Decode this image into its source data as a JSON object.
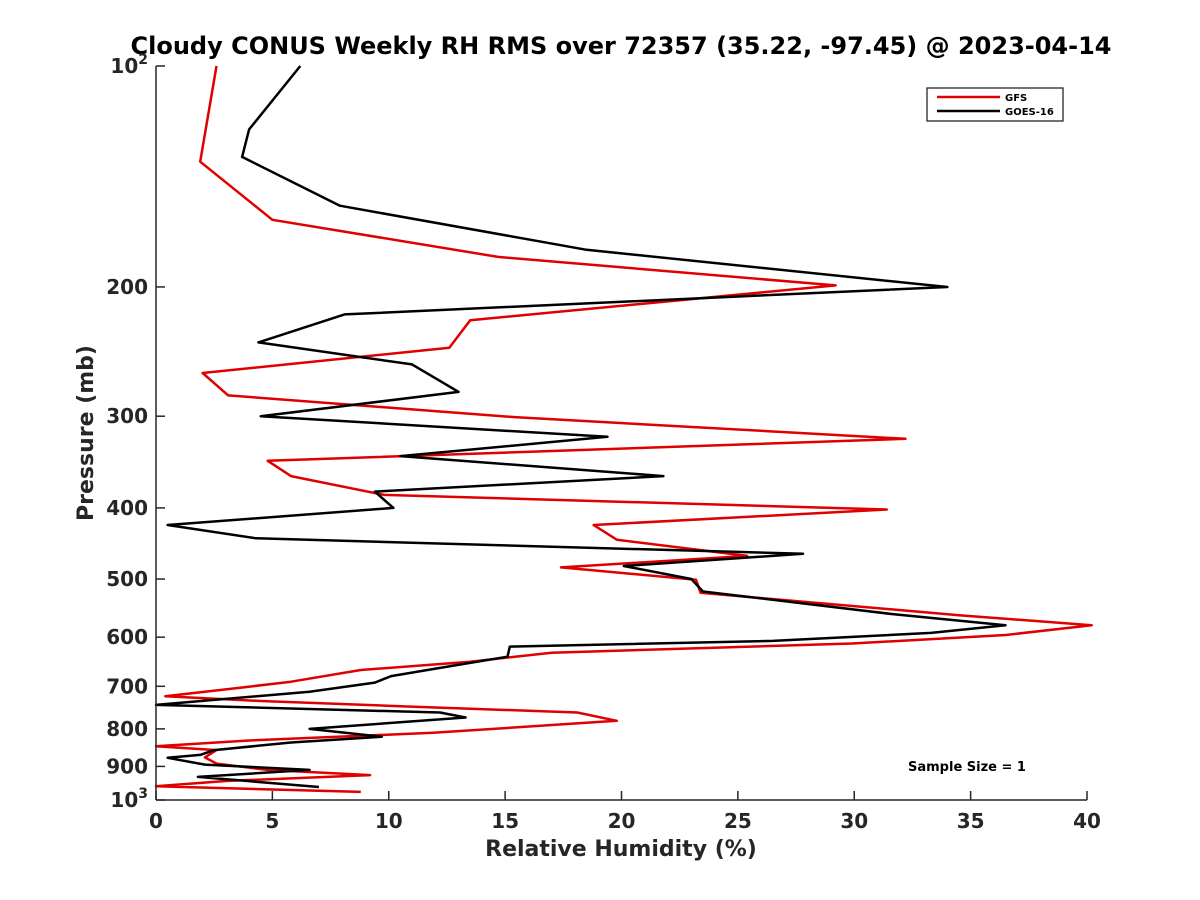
{
  "chart_data": {
    "type": "line",
    "title": "Cloudy CONUS Weekly RH RMS over 72357 (35.22, -97.45) @ 2023-04-14",
    "xlabel": "Relative Humidity (%)",
    "ylabel": "Pressure (mb)",
    "xlim": [
      0,
      40
    ],
    "ylim": [
      100,
      1000
    ],
    "y_scale": "log",
    "y_reversed": true,
    "x_ticks": [
      "0",
      "5",
      "10",
      "15",
      "20",
      "25",
      "30",
      "35",
      "40"
    ],
    "y_ticks": [
      {
        "value": 100,
        "base": "10",
        "exp": "2"
      },
      {
        "value": 200,
        "label": "200"
      },
      {
        "value": 300,
        "label": "300"
      },
      {
        "value": 400,
        "label": "400"
      },
      {
        "value": 500,
        "label": "500"
      },
      {
        "value": 600,
        "label": "600"
      },
      {
        "value": 700,
        "label": "700"
      },
      {
        "value": 800,
        "label": "800"
      },
      {
        "value": 900,
        "label": "900"
      },
      {
        "value": 1000,
        "base": "10",
        "exp": "3"
      }
    ],
    "grid": false,
    "legend_position": "top-right",
    "annotation": "Sample Size = 1",
    "series": [
      {
        "name": "GFS",
        "color": "#e00000",
        "points": [
          [
            2.6,
            100
          ],
          [
            1.9,
            135
          ],
          [
            5.0,
            162
          ],
          [
            14.7,
            182
          ],
          [
            29.2,
            199
          ],
          [
            13.5,
            222
          ],
          [
            12.6,
            242
          ],
          [
            2.0,
            262
          ],
          [
            3.1,
            281
          ],
          [
            15.5,
            301
          ],
          [
            32.2,
            322
          ],
          [
            4.8,
            345
          ],
          [
            5.8,
            362
          ],
          [
            9.8,
            384
          ],
          [
            31.4,
            402
          ],
          [
            18.8,
            422
          ],
          [
            19.8,
            442
          ],
          [
            25.4,
            465
          ],
          [
            17.4,
            482
          ],
          [
            23.2,
            501
          ],
          [
            23.4,
            522
          ],
          [
            34.5,
            560
          ],
          [
            40.2,
            578
          ],
          [
            36.5,
            596
          ],
          [
            29.9,
            612
          ],
          [
            17.0,
            630
          ],
          [
            13.5,
            648
          ],
          [
            8.8,
            665
          ],
          [
            5.8,
            690
          ],
          [
            3.8,
            702
          ],
          [
            0.4,
            722
          ],
          [
            4.5,
            733
          ],
          [
            10.5,
            745
          ],
          [
            18.1,
            760
          ],
          [
            19.8,
            780
          ],
          [
            11.9,
            810
          ],
          [
            3.9,
            830
          ],
          [
            0.0,
            845
          ],
          [
            2.6,
            855
          ],
          [
            2.1,
            875
          ],
          [
            2.6,
            892
          ],
          [
            4.8,
            910
          ],
          [
            9.2,
            925
          ],
          [
            3.0,
            942
          ],
          [
            0.0,
            958
          ],
          [
            8.8,
            975
          ]
        ]
      },
      {
        "name": "GOES-16",
        "color": "#000000",
        "points": [
          [
            6.2,
            100
          ],
          [
            4.0,
            122
          ],
          [
            3.7,
            133
          ],
          [
            7.9,
            155
          ],
          [
            18.5,
            178
          ],
          [
            34.0,
            200
          ],
          [
            8.1,
            218
          ],
          [
            4.4,
            238
          ],
          [
            11.0,
            255
          ],
          [
            13.0,
            278
          ],
          [
            4.5,
            300
          ],
          [
            19.4,
            320
          ],
          [
            10.5,
            340
          ],
          [
            21.8,
            362
          ],
          [
            9.4,
            380
          ],
          [
            10.2,
            400
          ],
          [
            0.5,
            422
          ],
          [
            4.3,
            440
          ],
          [
            27.8,
            462
          ],
          [
            20.1,
            480
          ],
          [
            23.0,
            500
          ],
          [
            23.5,
            520
          ],
          [
            31.6,
            558
          ],
          [
            36.5,
            578
          ],
          [
            33.3,
            592
          ],
          [
            26.5,
            607
          ],
          [
            15.2,
            618
          ],
          [
            15.1,
            638
          ],
          [
            12.3,
            660
          ],
          [
            10.1,
            678
          ],
          [
            9.4,
            692
          ],
          [
            6.6,
            712
          ],
          [
            0.0,
            742
          ],
          [
            12.2,
            760
          ],
          [
            13.3,
            772
          ],
          [
            6.6,
            800
          ],
          [
            9.7,
            820
          ],
          [
            5.8,
            835
          ],
          [
            2.5,
            855
          ],
          [
            1.9,
            868
          ],
          [
            0.5,
            876
          ],
          [
            2.1,
            895
          ],
          [
            6.6,
            910
          ],
          [
            1.8,
            930
          ],
          [
            7.0,
            960
          ]
        ]
      }
    ]
  }
}
